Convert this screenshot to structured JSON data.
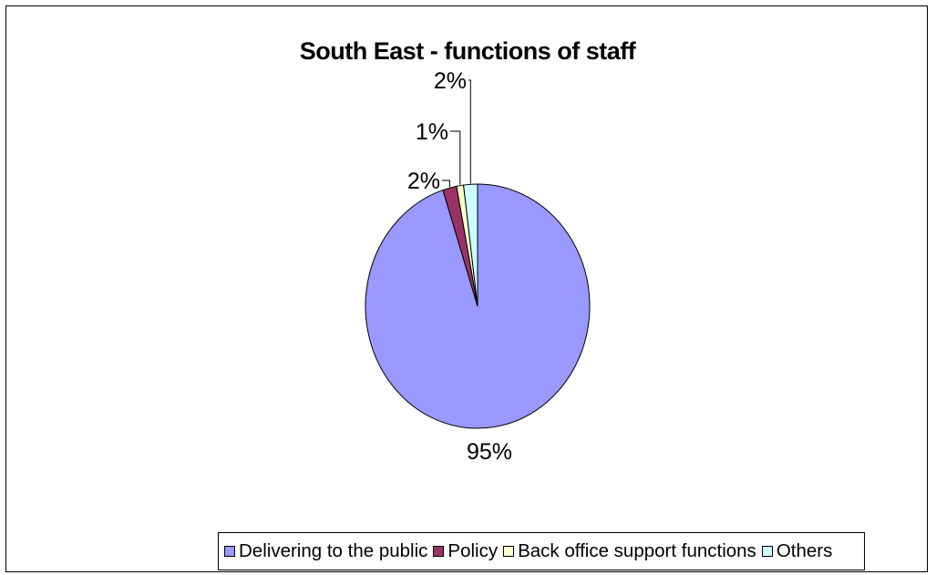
{
  "chart_data": {
    "type": "pie",
    "title": "South East - functions of staff",
    "categories": [
      "Delivering to the public",
      "Policy",
      "Back office support functions",
      "Others"
    ],
    "values": [
      95,
      2,
      1,
      2
    ],
    "labels": [
      "95%",
      "2%",
      "1%",
      "2%"
    ],
    "colors": [
      "#9999FF",
      "#993366",
      "#FFFFCC",
      "#CCFFFF"
    ],
    "legend_position": "bottom"
  }
}
